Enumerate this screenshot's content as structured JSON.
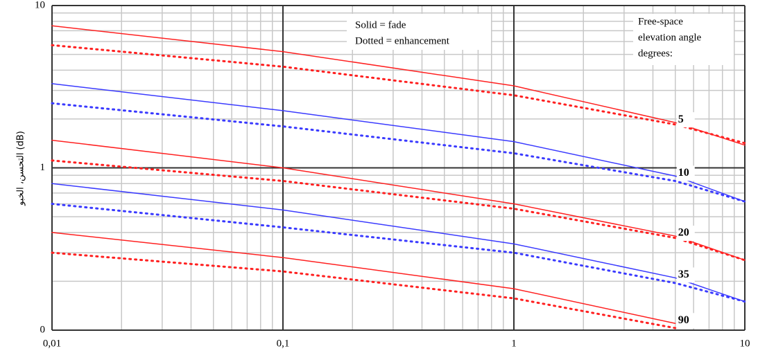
{
  "chart_data": {
    "type": "line",
    "y_label": "التحسن، الخبو (dB)",
    "x_scale": "log",
    "y_scale": "log",
    "grid": true,
    "minor_grid": true,
    "xlim": [
      0.01,
      10
    ],
    "ylim": [
      0.1,
      10
    ],
    "xticks": [
      {
        "value": 0.01,
        "label": "0,01"
      },
      {
        "value": 0.1,
        "label": "0,1"
      },
      1,
      10
    ],
    "yticks": [
      {
        "value": 0.1,
        "label": "0"
      },
      1,
      10
    ],
    "x": [
      0.01,
      0.1,
      1,
      5,
      10
    ],
    "series": [
      {
        "color": "#ff2020",
        "style": "solid",
        "values": [
          7.5,
          5.2,
          3.2,
          1.9,
          1.38
        ]
      },
      {
        "color": "#ff2020",
        "style": "dotted",
        "values": [
          5.7,
          4.2,
          2.8,
          1.85,
          1.42
        ]
      },
      {
        "color": "#3a3aff",
        "style": "solid",
        "values": [
          3.3,
          2.25,
          1.45,
          0.89,
          0.62
        ]
      },
      {
        "color": "#3a3aff",
        "style": "dotted",
        "values": [
          2.5,
          1.8,
          1.23,
          0.83,
          0.62
        ]
      },
      {
        "color": "#ff2020",
        "style": "solid",
        "values": [
          1.48,
          1.0,
          0.6,
          0.38,
          0.27
        ]
      },
      {
        "color": "#ff2020",
        "style": "dotted",
        "values": [
          1.11,
          0.83,
          0.56,
          0.37,
          0.27
        ]
      },
      {
        "color": "#3a3aff",
        "style": "solid",
        "values": [
          0.8,
          0.55,
          0.34,
          0.21,
          0.15
        ]
      },
      {
        "color": "#3a3aff",
        "style": "dotted",
        "values": [
          0.6,
          0.43,
          0.3,
          0.195,
          0.15
        ]
      },
      {
        "color": "#ff2020",
        "style": "solid",
        "values": [
          0.4,
          0.28,
          0.18,
          0.11,
          null
        ]
      },
      {
        "color": "#ff2020",
        "style": "dotted",
        "values": [
          0.3,
          0.23,
          0.157,
          0.103,
          null
        ]
      }
    ],
    "curve_labels": [
      "5",
      "10",
      "20",
      "35",
      "90"
    ],
    "legend_text": [
      "Solid = fade",
      "Dotted = enhancement"
    ],
    "angle_note": [
      "Free-space",
      "elevation angle",
      "degrees:"
    ]
  }
}
